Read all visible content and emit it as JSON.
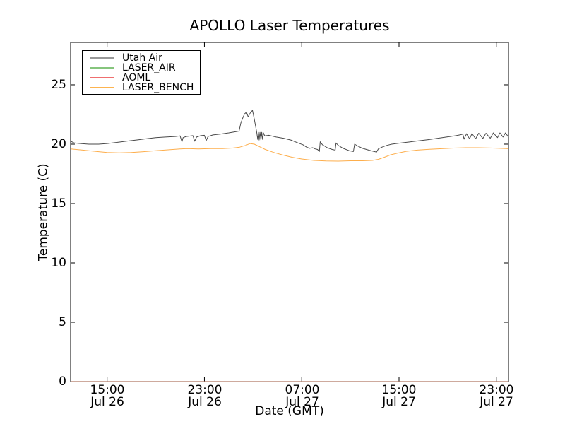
{
  "chart_data": {
    "type": "line",
    "title": "APOLLO Laser Temperatures",
    "xlabel": "Date (GMT)",
    "ylabel": "Temperature (C)",
    "x_unit": "hours since Jul 26 12:00 GMT",
    "xlim": [
      0,
      36
    ],
    "ylim": [
      0,
      28.57
    ],
    "grid": false,
    "legend_position": "upper left",
    "x_ticks": [
      {
        "hours": 3,
        "line1": "15:00",
        "line2": "Jul 26"
      },
      {
        "hours": 11,
        "line1": "23:00",
        "line2": "Jul 26"
      },
      {
        "hours": 19,
        "line1": "07:00",
        "line2": "Jul 27"
      },
      {
        "hours": 27,
        "line1": "15:00",
        "line2": "Jul 27"
      },
      {
        "hours": 35,
        "line1": "23:00",
        "line2": "Jul 27"
      }
    ],
    "y_ticks": [
      {
        "value": 0,
        "label": "0"
      },
      {
        "value": 5,
        "label": "5"
      },
      {
        "value": 10,
        "label": "10"
      },
      {
        "value": 15,
        "label": "15"
      },
      {
        "value": 20,
        "label": "20"
      },
      {
        "value": 25,
        "label": "25"
      }
    ],
    "series": [
      {
        "name": "LASER_AIR",
        "color": "#86c57d",
        "width": 1.2,
        "opacity": 0.6,
        "x": [
          0,
          36
        ],
        "values": [
          0,
          0
        ]
      },
      {
        "name": "AOML",
        "color": "#ef6f6f",
        "width": 1.2,
        "opacity": 0.6,
        "x": [
          0,
          36
        ],
        "values": [
          0,
          0
        ]
      },
      {
        "name": "Utah Air",
        "color": "#4a4a4a",
        "width": 1,
        "opacity": 1,
        "x": [
          0,
          0.3,
          0.8,
          1.5,
          2.3,
          3.0,
          3.8,
          4.6,
          5.4,
          6.2,
          7.0,
          7.8,
          8.6,
          9.0,
          9.15,
          9.25,
          9.5,
          9.9,
          10.05,
          10.2,
          10.35,
          10.7,
          11.0,
          11.15,
          11.3,
          11.7,
          12.3,
          13.0,
          13.6,
          13.85,
          14.0,
          14.15,
          14.3,
          14.45,
          14.6,
          14.75,
          14.95,
          15.1,
          15.3,
          15.38,
          15.44,
          15.5,
          15.57,
          15.64,
          15.71,
          15.78,
          15.85,
          15.95,
          16.3,
          16.9,
          17.5,
          18.1,
          18.7,
          19.1,
          19.4,
          19.65,
          19.9,
          20.1,
          20.3,
          20.45,
          20.52,
          20.7,
          21.1,
          21.5,
          21.75,
          21.82,
          22.0,
          22.4,
          22.9,
          23.25,
          23.35,
          23.6,
          24.0,
          24.5,
          24.9,
          25.15,
          25.3,
          25.6,
          26.0,
          26.4,
          27.0,
          27.8,
          28.6,
          29.4,
          30.2,
          31.0,
          31.7,
          32.1,
          32.25,
          32.35,
          32.55,
          32.8,
          33.0,
          33.3,
          33.55,
          33.9,
          34.15,
          34.5,
          34.75,
          35.1,
          35.3,
          35.55,
          35.75,
          36.0
        ],
        "values": [
          20.25,
          20.1,
          20.05,
          20.0,
          20.0,
          20.05,
          20.15,
          20.25,
          20.35,
          20.45,
          20.55,
          20.6,
          20.65,
          20.7,
          20.2,
          20.55,
          20.65,
          20.7,
          20.72,
          20.25,
          20.6,
          20.72,
          20.75,
          20.3,
          20.65,
          20.78,
          20.85,
          20.95,
          21.05,
          21.1,
          21.8,
          22.2,
          22.55,
          22.7,
          22.3,
          22.6,
          22.85,
          22.1,
          21.0,
          20.4,
          21.0,
          20.35,
          21.0,
          20.35,
          21.0,
          20.4,
          20.95,
          20.7,
          20.75,
          20.6,
          20.5,
          20.35,
          20.1,
          19.95,
          19.75,
          19.65,
          19.7,
          19.6,
          19.55,
          19.38,
          20.2,
          19.95,
          19.7,
          19.55,
          19.5,
          20.1,
          19.9,
          19.65,
          19.45,
          19.38,
          20.0,
          19.85,
          19.65,
          19.5,
          19.4,
          19.33,
          19.6,
          19.75,
          19.9,
          20.0,
          20.08,
          20.18,
          20.28,
          20.38,
          20.5,
          20.62,
          20.72,
          20.8,
          20.85,
          20.42,
          20.88,
          20.45,
          20.9,
          20.45,
          20.92,
          20.48,
          20.92,
          20.5,
          20.95,
          20.55,
          20.95,
          20.6,
          20.95,
          20.6
        ]
      },
      {
        "name": "LASER_BENCH",
        "color": "#fdae4c",
        "width": 1,
        "opacity": 1,
        "x": [
          0,
          1,
          2,
          3,
          4,
          5,
          6,
          7,
          8,
          9,
          9.6,
          10.5,
          11.5,
          12.5,
          13.3,
          13.9,
          14.4,
          14.75,
          15.1,
          15.5,
          16.0,
          16.7,
          17.4,
          18.2,
          19.0,
          20.0,
          21.0,
          22.0,
          23.0,
          24.0,
          24.8,
          25.3,
          25.8,
          26.3,
          26.9,
          27.6,
          28.5,
          29.5,
          30.5,
          31.5,
          32.5,
          33.5,
          34.5,
          35.3,
          36.0
        ],
        "values": [
          19.6,
          19.5,
          19.4,
          19.3,
          19.27,
          19.3,
          19.37,
          19.45,
          19.52,
          19.6,
          19.63,
          19.6,
          19.63,
          19.63,
          19.67,
          19.75,
          19.9,
          20.05,
          20.0,
          19.8,
          19.55,
          19.3,
          19.1,
          18.9,
          18.75,
          18.63,
          18.58,
          18.57,
          18.6,
          18.6,
          18.63,
          18.72,
          18.9,
          19.1,
          19.25,
          19.4,
          19.5,
          19.57,
          19.62,
          19.67,
          19.7,
          19.7,
          19.68,
          19.65,
          19.62
        ]
      }
    ]
  },
  "legend": {
    "items": [
      {
        "label": "Utah Air",
        "color": "#999999"
      },
      {
        "label": "LASER_AIR",
        "color": "#86c57d"
      },
      {
        "label": "AOML",
        "color": "#ef6f6f"
      },
      {
        "label": "LASER_BENCH",
        "color": "#fdb450"
      }
    ]
  }
}
